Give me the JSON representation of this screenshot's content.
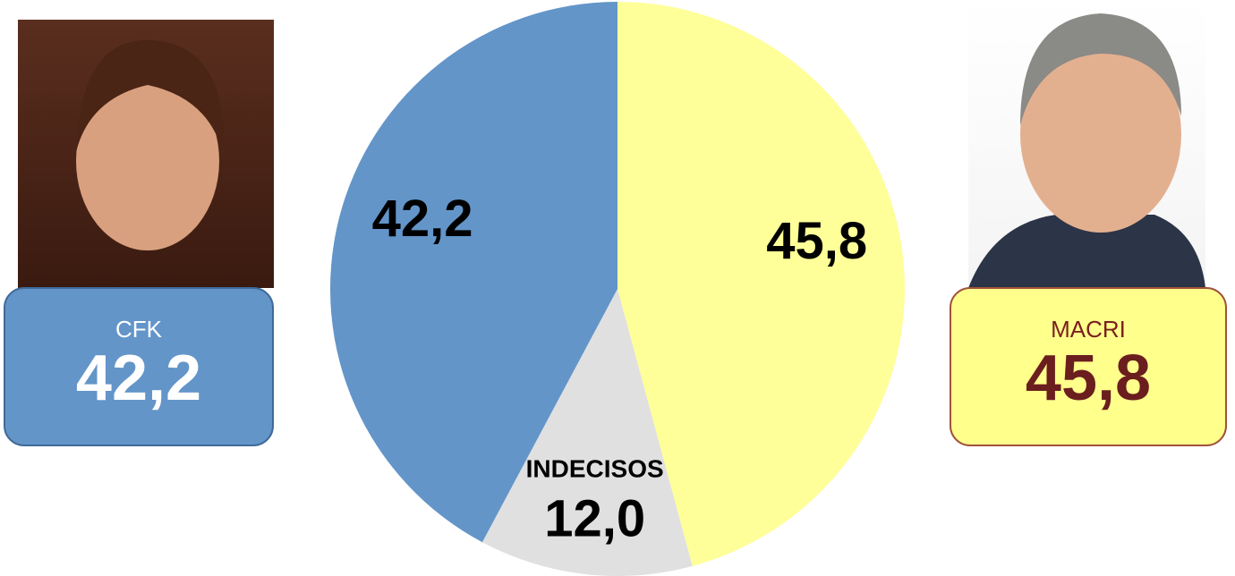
{
  "chart_data": {
    "type": "pie",
    "categories": [
      "MACRI",
      "INDECISOS",
      "CFK"
    ],
    "values": [
      45.8,
      12.0,
      42.2
    ],
    "value_labels": [
      "45,8",
      "12,0",
      "42,2"
    ],
    "colors": [
      "#ffff99",
      "#e0e0e0",
      "#6395c9"
    ]
  }
}
